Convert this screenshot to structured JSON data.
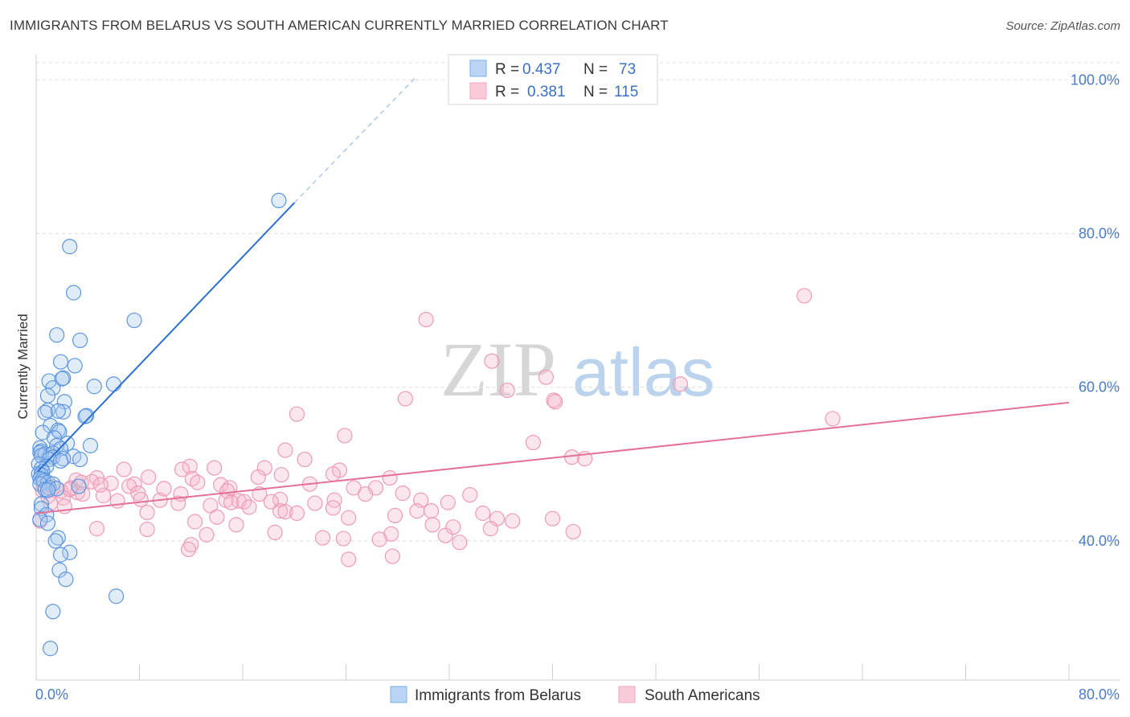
{
  "title": "IMMIGRANTS FROM BELARUS VS SOUTH AMERICAN CURRENTLY MARRIED CORRELATION CHART",
  "source": "Source: ZipAtlas.com",
  "watermark": {
    "zip": "ZIP",
    "atlas": "atlas"
  },
  "colors": {
    "blue": "#7aaee8",
    "blue_line": "#2b6fd0",
    "pink": "#f2a6bf",
    "pink_line": "#e2709a",
    "grid": "#dcdcdc",
    "axis_text": "#4a7cc7"
  },
  "legend": {
    "rows": [
      {
        "r_label": "R = ",
        "r_value": "0.437",
        "n_label": "N = ",
        "n_value": "73"
      },
      {
        "r_label": "R = ",
        "r_value": "0.381",
        "n_label": "N = ",
        "n_value": "115"
      }
    ]
  },
  "chart_data": {
    "type": "scatter",
    "title": "IMMIGRANTS FROM BELARUS VS SOUTH AMERICAN CURRENTLY MARRIED CORRELATION CHART",
    "xlabel": "",
    "ylabel": "Currently Married",
    "xlim": [
      0,
      80
    ],
    "ylim": [
      22,
      103
    ],
    "x_tick_labels": [
      "0.0%",
      "80.0%"
    ],
    "y_tick_labels": [
      "100.0%",
      "80.0%",
      "60.0%",
      "40.0%"
    ],
    "y_ticks": [
      100,
      80,
      60,
      40
    ],
    "grid": true,
    "legend_position": "top-center",
    "series": [
      {
        "name": "Immigrants from Belarus",
        "color": "#7aaee8",
        "trend": {
          "x": [
            0.1,
            20.0
          ],
          "y": [
            49.0,
            84.0
          ],
          "extended_to": [
            29.5,
            100.5
          ]
        },
        "points": [
          [
            18.8,
            84.3
          ],
          [
            2.6,
            78.3
          ],
          [
            2.9,
            72.3
          ],
          [
            7.6,
            68.7
          ],
          [
            1.6,
            66.8
          ],
          [
            3.4,
            66.1
          ],
          [
            3.0,
            62.8
          ],
          [
            1.9,
            63.3
          ],
          [
            2.1,
            61.2
          ],
          [
            1.0,
            60.8
          ],
          [
            2.0,
            61.1
          ],
          [
            6.0,
            60.4
          ],
          [
            4.5,
            60.1
          ],
          [
            1.3,
            59.9
          ],
          [
            0.9,
            58.9
          ],
          [
            2.2,
            58.1
          ],
          [
            0.9,
            57.0
          ],
          [
            2.1,
            56.8
          ],
          [
            1.7,
            56.9
          ],
          [
            0.7,
            56.7
          ],
          [
            3.9,
            56.3
          ],
          [
            3.8,
            56.2
          ],
          [
            1.1,
            55.0
          ],
          [
            1.7,
            54.4
          ],
          [
            1.8,
            54.2
          ],
          [
            0.5,
            54.1
          ],
          [
            1.4,
            53.4
          ],
          [
            2.4,
            52.7
          ],
          [
            1.6,
            52.4
          ],
          [
            4.2,
            52.4
          ],
          [
            0.3,
            52.1
          ],
          [
            1.9,
            52.0
          ],
          [
            0.4,
            51.7
          ],
          [
            0.3,
            51.5
          ],
          [
            0.7,
            51.3
          ],
          [
            1.1,
            51.2
          ],
          [
            1.3,
            51.4
          ],
          [
            0.4,
            51.1
          ],
          [
            2.9,
            51.0
          ],
          [
            1.3,
            50.9
          ],
          [
            2.1,
            50.7
          ],
          [
            1.0,
            50.6
          ],
          [
            3.4,
            50.6
          ],
          [
            1.9,
            50.4
          ],
          [
            0.2,
            50.0
          ],
          [
            0.8,
            49.7
          ],
          [
            0.4,
            49.4
          ],
          [
            0.5,
            49.0
          ],
          [
            0.2,
            48.7
          ],
          [
            0.4,
            48.6
          ],
          [
            0.3,
            48.1
          ],
          [
            0.5,
            48.0
          ],
          [
            0.6,
            47.8
          ],
          [
            0.9,
            47.6
          ],
          [
            0.3,
            47.4
          ],
          [
            1.3,
            47.4
          ],
          [
            3.3,
            47.1
          ],
          [
            1.0,
            46.9
          ],
          [
            0.7,
            46.7
          ],
          [
            1.6,
            46.8
          ],
          [
            0.9,
            46.6
          ],
          [
            0.4,
            44.8
          ],
          [
            0.4,
            44.2
          ],
          [
            0.8,
            43.4
          ],
          [
            0.3,
            42.8
          ],
          [
            0.9,
            42.3
          ],
          [
            1.7,
            40.4
          ],
          [
            1.5,
            40.0
          ],
          [
            2.6,
            38.5
          ],
          [
            1.9,
            38.2
          ],
          [
            1.8,
            36.2
          ],
          [
            2.3,
            35.0
          ],
          [
            6.2,
            32.8
          ],
          [
            1.3,
            30.8
          ],
          [
            1.1,
            26.0
          ]
        ]
      },
      {
        "name": "South Americans",
        "color": "#f2a6bf",
        "trend": {
          "x": [
            0.0,
            80.0
          ],
          "y": [
            43.6,
            58.0
          ]
        },
        "points": [
          [
            59.5,
            71.9
          ],
          [
            30.2,
            68.8
          ],
          [
            35.3,
            63.4
          ],
          [
            39.5,
            61.3
          ],
          [
            49.9,
            60.4
          ],
          [
            36.5,
            59.6
          ],
          [
            28.6,
            58.5
          ],
          [
            40.1,
            58.3
          ],
          [
            40.2,
            58.1
          ],
          [
            20.2,
            56.5
          ],
          [
            61.7,
            55.9
          ],
          [
            23.9,
            53.7
          ],
          [
            38.5,
            52.8
          ],
          [
            19.3,
            51.8
          ],
          [
            41.5,
            50.9
          ],
          [
            20.8,
            50.6
          ],
          [
            42.5,
            50.7
          ],
          [
            11.9,
            49.7
          ],
          [
            13.8,
            49.5
          ],
          [
            17.7,
            49.5
          ],
          [
            6.8,
            49.3
          ],
          [
            11.3,
            49.3
          ],
          [
            23.5,
            49.2
          ],
          [
            23.0,
            48.7
          ],
          [
            19.0,
            48.6
          ],
          [
            8.7,
            48.3
          ],
          [
            17.2,
            48.3
          ],
          [
            4.7,
            48.2
          ],
          [
            12.1,
            48.1
          ],
          [
            27.4,
            48.2
          ],
          [
            3.1,
            47.9
          ],
          [
            3.5,
            47.6
          ],
          [
            5.8,
            47.5
          ],
          [
            7.6,
            47.4
          ],
          [
            12.5,
            47.6
          ],
          [
            21.2,
            47.4
          ],
          [
            14.3,
            47.3
          ],
          [
            7.2,
            47.1
          ],
          [
            15.0,
            46.9
          ],
          [
            2.7,
            46.9
          ],
          [
            24.6,
            46.9
          ],
          [
            26.3,
            46.9
          ],
          [
            14.8,
            46.5
          ],
          [
            0.5,
            46.6
          ],
          [
            1.9,
            46.5
          ],
          [
            3.2,
            46.3
          ],
          [
            7.9,
            46.2
          ],
          [
            11.2,
            46.1
          ],
          [
            17.3,
            46.1
          ],
          [
            25.5,
            46.1
          ],
          [
            28.4,
            46.2
          ],
          [
            33.6,
            46.0
          ],
          [
            5.2,
            45.9
          ],
          [
            0.9,
            45.8
          ],
          [
            2.1,
            45.6
          ],
          [
            14.7,
            45.3
          ],
          [
            8.1,
            45.4
          ],
          [
            9.6,
            45.3
          ],
          [
            6.3,
            45.2
          ],
          [
            18.9,
            45.4
          ],
          [
            15.7,
            45.2
          ],
          [
            23.1,
            45.3
          ],
          [
            29.8,
            45.3
          ],
          [
            18.2,
            45.1
          ],
          [
            15.1,
            45.0
          ],
          [
            16.1,
            45.1
          ],
          [
            31.9,
            45.0
          ],
          [
            1.1,
            44.9
          ],
          [
            11.0,
            44.9
          ],
          [
            2.2,
            44.5
          ],
          [
            13.5,
            44.6
          ],
          [
            16.5,
            44.4
          ],
          [
            23.0,
            44.3
          ],
          [
            18.9,
            43.9
          ],
          [
            19.3,
            43.8
          ],
          [
            29.5,
            43.9
          ],
          [
            30.6,
            43.9
          ],
          [
            20.2,
            43.6
          ],
          [
            34.6,
            43.6
          ],
          [
            8.6,
            43.7
          ],
          [
            14.0,
            43.1
          ],
          [
            24.2,
            43.0
          ],
          [
            27.8,
            43.3
          ],
          [
            35.7,
            42.9
          ],
          [
            0.3,
            42.6
          ],
          [
            40.0,
            42.9
          ],
          [
            36.9,
            42.6
          ],
          [
            12.3,
            42.5
          ],
          [
            15.5,
            42.1
          ],
          [
            30.7,
            42.1
          ],
          [
            32.3,
            41.8
          ],
          [
            4.7,
            41.6
          ],
          [
            8.6,
            41.5
          ],
          [
            35.2,
            41.6
          ],
          [
            41.6,
            41.2
          ],
          [
            18.5,
            41.1
          ],
          [
            27.5,
            40.9
          ],
          [
            13.2,
            40.8
          ],
          [
            31.7,
            40.7
          ],
          [
            22.2,
            40.4
          ],
          [
            23.8,
            40.3
          ],
          [
            26.6,
            40.2
          ],
          [
            32.8,
            39.8
          ],
          [
            12.0,
            39.5
          ],
          [
            11.8,
            38.9
          ],
          [
            27.6,
            38.0
          ],
          [
            24.2,
            37.6
          ],
          [
            0.6,
            47.2
          ],
          [
            1.3,
            47.0
          ],
          [
            2.6,
            46.7
          ],
          [
            9.9,
            46.8
          ],
          [
            4.3,
            47.7
          ],
          [
            5.0,
            47.3
          ],
          [
            3.6,
            46.1
          ],
          [
            21.6,
            44.9
          ]
        ]
      }
    ]
  }
}
